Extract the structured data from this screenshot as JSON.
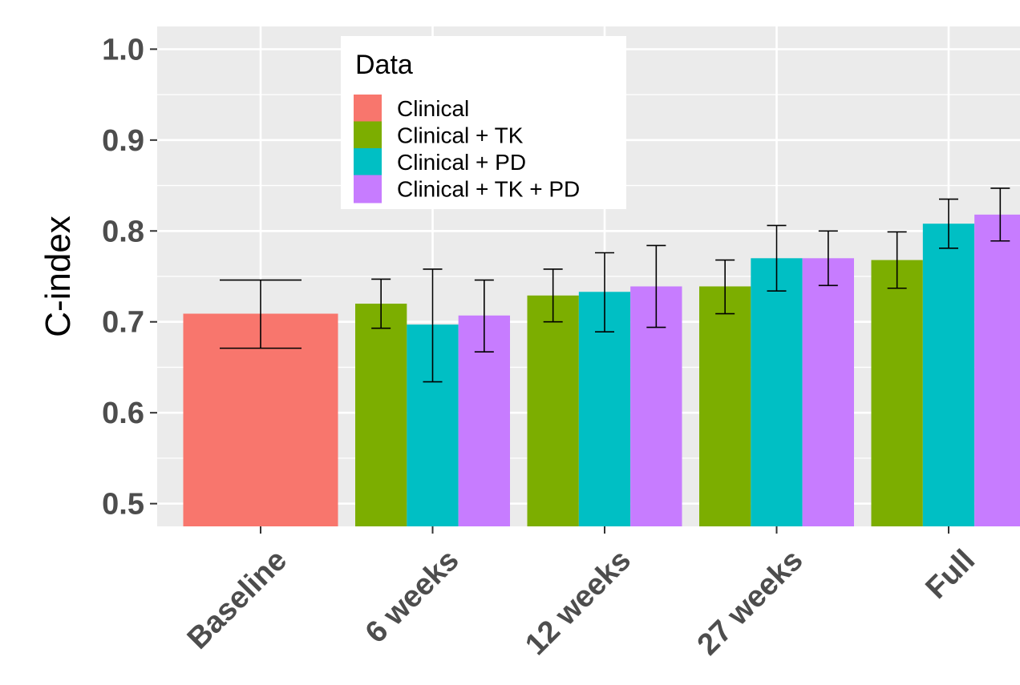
{
  "chart_data": {
    "type": "bar",
    "ylabel": "C-index",
    "xlabel": "",
    "ylim": [
      0.475,
      1.025
    ],
    "yticks": [
      "0.5",
      "0.6",
      "0.7",
      "0.8",
      "0.9",
      "1.0"
    ],
    "categories": [
      "Baseline",
      "6 weeks",
      "12 weeks",
      "27 weeks",
      "Full"
    ],
    "legend": {
      "title": "Data",
      "placement": "top-left",
      "entries": [
        "Clinical",
        "Clinical + TK",
        "Clinical + PD",
        "Clinical + TK + PD"
      ]
    },
    "grid": true,
    "colors": {
      "Clinical": "#F8766D",
      "Clinical + TK": "#7CAE00",
      "Clinical + PD": "#00BFC4",
      "Clinical + TK + PD": "#C77CFF",
      "panel": "#EBEBEB",
      "grid": "#FFFFFF"
    },
    "series": [
      {
        "name": "Clinical",
        "values": [
          0.709,
          null,
          null,
          null,
          null
        ],
        "err_low": [
          0.671,
          null,
          null,
          null,
          null
        ],
        "err_high": [
          0.746,
          null,
          null,
          null,
          null
        ]
      },
      {
        "name": "Clinical + TK",
        "values": [
          null,
          0.72,
          0.729,
          0.739,
          0.768
        ],
        "err_low": [
          null,
          0.693,
          0.7,
          0.709,
          0.737
        ],
        "err_high": [
          null,
          0.747,
          0.758,
          0.768,
          0.799
        ]
      },
      {
        "name": "Clinical + PD",
        "values": [
          null,
          0.697,
          0.733,
          0.77,
          0.808
        ],
        "err_low": [
          null,
          0.634,
          0.689,
          0.734,
          0.781
        ],
        "err_high": [
          null,
          0.758,
          0.776,
          0.806,
          0.835
        ]
      },
      {
        "name": "Clinical + TK + PD",
        "values": [
          null,
          0.707,
          0.739,
          0.77,
          0.818
        ],
        "err_low": [
          null,
          0.667,
          0.694,
          0.74,
          0.789
        ],
        "err_high": [
          null,
          0.746,
          0.784,
          0.8,
          0.847
        ]
      }
    ]
  }
}
